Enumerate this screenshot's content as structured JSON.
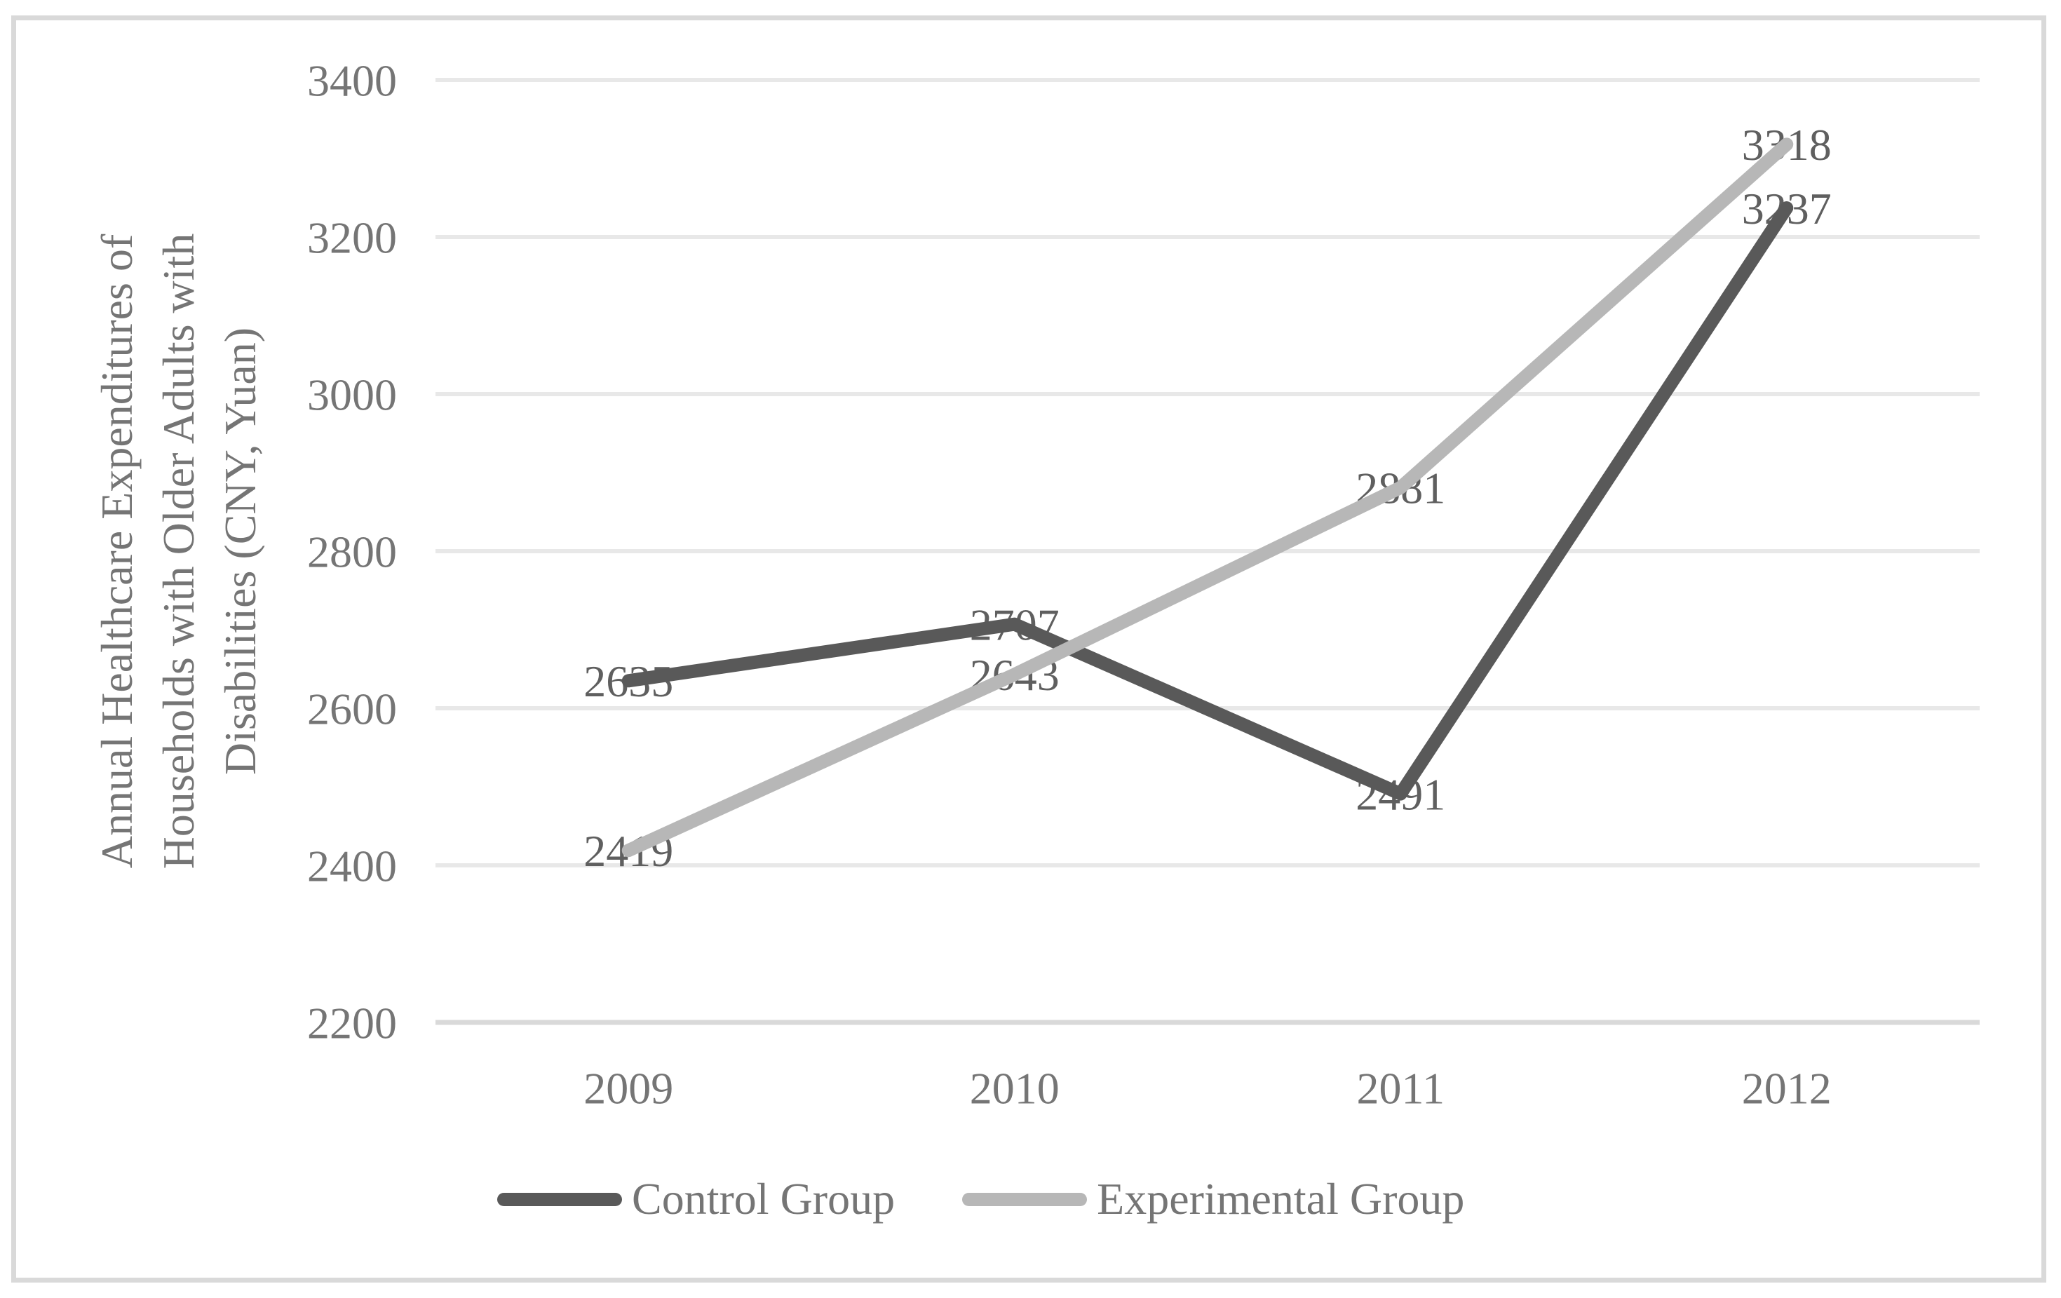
{
  "chart_data": {
    "type": "line",
    "title": "",
    "categories": [
      "2009",
      "2010",
      "2011",
      "2012"
    ],
    "series": [
      {
        "name": "Control Group",
        "values": [
          2635,
          2707,
          2491,
          3237
        ],
        "color": "#595959"
      },
      {
        "name": "Experimental Group",
        "values": [
          2419,
          2643,
          2881,
          3318
        ],
        "color": "#b7b7b7"
      }
    ],
    "data_labels": {
      "control": [
        "2635",
        "2707",
        "2491",
        "3237"
      ],
      "experimental": [
        "2419",
        "2643",
        "2881",
        "3318"
      ]
    },
    "ylabel_lines": [
      "Annual Healthcare Expenditures of",
      "Households with Older Adults with",
      "Disabilities (CNY, Yuan)"
    ],
    "xlabel": "",
    "y_axis": {
      "min": 2200,
      "max": 3400,
      "step": 200,
      "ticks": [
        "2200",
        "2400",
        "2600",
        "2800",
        "3000",
        "3200",
        "3400"
      ]
    },
    "grid": true,
    "legend_position": "bottom",
    "colors": {
      "grid_line": "#e8e8e8",
      "axis_line": "#d9d9d9",
      "chart_border": "#d9d9d9",
      "tick_text": "#757575",
      "data_label_text": "#5f5f5f",
      "control_line": "#595959",
      "experimental_line": "#b7b7b7"
    }
  }
}
